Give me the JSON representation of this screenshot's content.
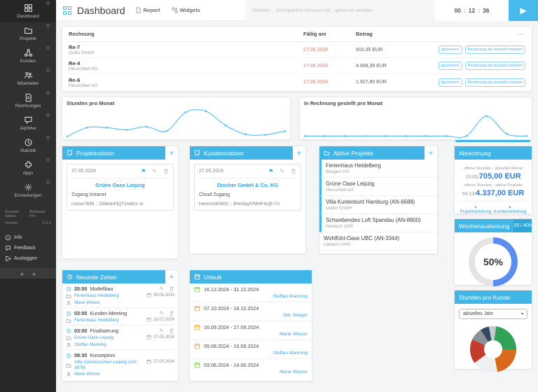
{
  "sidebar": {
    "items": [
      {
        "label": "Dashboard",
        "icon": "dashboard-grid"
      },
      {
        "label": "Projekte",
        "icon": "folder"
      },
      {
        "label": "Kunden",
        "icon": "network"
      },
      {
        "label": "Mitarbeiter",
        "icon": "people"
      },
      {
        "label": "Rechnungen",
        "icon": "document"
      },
      {
        "label": "Jephlive",
        "icon": "chat"
      },
      {
        "label": "Statistik",
        "icon": "clock"
      },
      {
        "label": "Apps",
        "icon": "puzzle"
      },
      {
        "label": "Einstellungen",
        "icon": "gear"
      }
    ],
    "account": {
      "status_label": "Account Status",
      "status_value": "Business Pro",
      "version_label": "Version",
      "version_value": "2.2.3"
    },
    "footer_items": [
      {
        "label": "Info"
      },
      {
        "label": "Feedback"
      },
      {
        "label": "Ausloggen"
      }
    ],
    "pager": {
      "prev": "«",
      "next": "»"
    }
  },
  "topbar": {
    "title": "Dashboard",
    "report_label": "Report",
    "widgets_label": "Widgets",
    "notes_placeholder": "Notizen... Stichpunkte können mit ; getrennt werden",
    "timer": {
      "h": "00",
      "m": "12",
      "s": "36",
      "colon": ":"
    },
    "play": "▶"
  },
  "invoices": {
    "columns": {
      "invoice": "Rechnung",
      "due": "Fällig am",
      "amount": "Betrag"
    },
    "menu": "···",
    "actions": {
      "ignore": "Ignorieren",
      "paid": "Rechnung als bezahlt markiert"
    },
    "rows": [
      {
        "id": "Re-7",
        "customer": "Gubü GmbH",
        "due": "27.05.2024",
        "amount": "910,35 EUR"
      },
      {
        "id": "Re-4",
        "customer": "Heuschkel AG",
        "due": "17.06.2024",
        "amount": "4.908,39 EUR"
      },
      {
        "id": "Re-6",
        "customer": "Heuschkel AG",
        "due": "17.06.2024",
        "amount": "1.927,80 EUR"
      }
    ]
  },
  "chart_data": [
    {
      "type": "line",
      "title": "Stunden pro Monat",
      "x": [
        1,
        2,
        3,
        4,
        5,
        6,
        7,
        8,
        9,
        10,
        11,
        12
      ],
      "values": [
        0,
        20,
        20,
        15,
        22,
        12,
        55,
        57,
        25,
        5,
        4,
        12
      ],
      "ylim": [
        0,
        60
      ],
      "color": "#5bc2f0",
      "markers": true,
      "grid": false
    },
    {
      "type": "line",
      "title": "In Rechnung gestellt pro Monat",
      "x": [
        1,
        2,
        3,
        4,
        5,
        6,
        7,
        8,
        9,
        10,
        11,
        12
      ],
      "values": [
        1,
        1,
        1,
        1,
        1,
        1,
        1,
        1,
        1,
        46,
        6,
        1
      ],
      "ylim": [
        0,
        60
      ],
      "color": "#5bc2f0",
      "markers": true,
      "grid": false
    },
    {
      "type": "donut",
      "title": "Wochenauslastung",
      "badge": "20 / 40h",
      "value": 50,
      "max": 100,
      "label": "50%",
      "fill_color": "#5b8def",
      "track_color": "#e4e4e4"
    },
    {
      "type": "pie",
      "title": "Stunden pro Kunde",
      "select_value": "aktuelles Jahr",
      "segments": [
        {
          "name": "sliver-1",
          "pct": 2,
          "color": "#c3cbd1"
        },
        {
          "name": "green",
          "pct": 23,
          "color": "#31a356"
        },
        {
          "name": "orange",
          "pct": 22,
          "color": "#d8691e"
        },
        {
          "name": "light",
          "pct": 18,
          "color": "#eef0f1"
        },
        {
          "name": "red",
          "pct": 17,
          "color": "#c23d2e"
        },
        {
          "name": "gray",
          "pct": 9,
          "color": "#8a9298"
        },
        {
          "name": "navy",
          "pct": 6,
          "color": "#334a5e"
        },
        {
          "name": "sliver-2",
          "pct": 3,
          "color": "#c3cbd1"
        }
      ]
    }
  ],
  "projektnotizen": {
    "title": "Projektnotizen",
    "note": {
      "date": "27.05.2024",
      "link": "Grüne Oase Leipzig",
      "line1": "Zugang Intranet",
      "line2": "nutzer7836 :: ZM&dnPjQTzn&Kz~d"
    }
  },
  "kundennotizen": {
    "title": "Kundennotizen",
    "note": {
      "date": "27.05.2024",
      "link": "Discher GmbH & Co. KG",
      "line1": "Cloud Zugang",
      "line2": "Heinrich83902 :: B%G&yfYMHF4(@>7z"
    }
  },
  "aktive_projekte": {
    "title": "Aktive Projekte",
    "items": [
      {
        "name": "Ferienhaus Heidelberg",
        "sub": "Bungert UG"
      },
      {
        "name": "Grüne Oase Leipzig",
        "sub": "Heuschkel AG"
      },
      {
        "name": "Villa Kunterbunt Hamburg (AN-6688)",
        "sub": "Uudur GmbH"
      },
      {
        "name": "Schwebendes Loft Spandau (AN-8800)",
        "sub": "Herbertz GbR"
      },
      {
        "name": "Wohlfühl-Oase UBC (AN-3344)",
        "sub": "Laibach OHG"
      }
    ]
  },
  "abrechnung": {
    "title": "Abrechnung",
    "row1": {
      "label": "offene Stunden - aktueller Monat",
      "hours": "20:00/",
      "amount": "705,00 EUR"
    },
    "row2": {
      "label": "offene Stunden - aktive Projekte",
      "hours": "94:10/",
      "amount": "4.337,00 EUR"
    },
    "links": {
      "left": "Projektverteilung",
      "right": "Kundenverteilung",
      "chev": "▾"
    }
  },
  "neueste_zeiten": {
    "title": "Neueste Zeiten",
    "entries": [
      {
        "time": "20:00",
        "task": "Modellbau",
        "project": "Ferienhaus Heidelberg",
        "person": "Marie Winzer",
        "date": "26.08.2024"
      },
      {
        "time": "03:00",
        "task": "Kunden-Meeting",
        "project": "Ferienhaus Heidelberg",
        "person": "",
        "date": "16.07.2024"
      },
      {
        "time": "03:00",
        "task": "Finalisierung",
        "project": "Grüne Oase Leipzig",
        "person": "Steffan Manning",
        "date": "27.05.2024"
      },
      {
        "time": "08:30",
        "task": "Konzeption",
        "project": "Villa Sonnenschein Leipzig (AN-5678)",
        "person": "Marie Winzer",
        "date": "27.05.2024"
      }
    ]
  },
  "urlaub": {
    "title": "Urlaub",
    "entries": [
      {
        "range": "16.12.2024 - 31.12.2024",
        "person": "Steffan Manning",
        "icon_color": "green"
      },
      {
        "range": "07.10.2024 - 18.10.2024",
        "person": "Nils Steiger",
        "icon_color": "orange"
      },
      {
        "range": "16.09.2024 - 27.09.2024",
        "person": "Marie Winzer",
        "icon_color": "orange"
      },
      {
        "range": "05.08.2024 - 16.08.2024",
        "person": "Steffan Manning",
        "icon_color": "orange"
      },
      {
        "range": "03.06.2024 - 14.06.2024",
        "person": "Marie Winzer",
        "icon_color": "green"
      }
    ]
  }
}
